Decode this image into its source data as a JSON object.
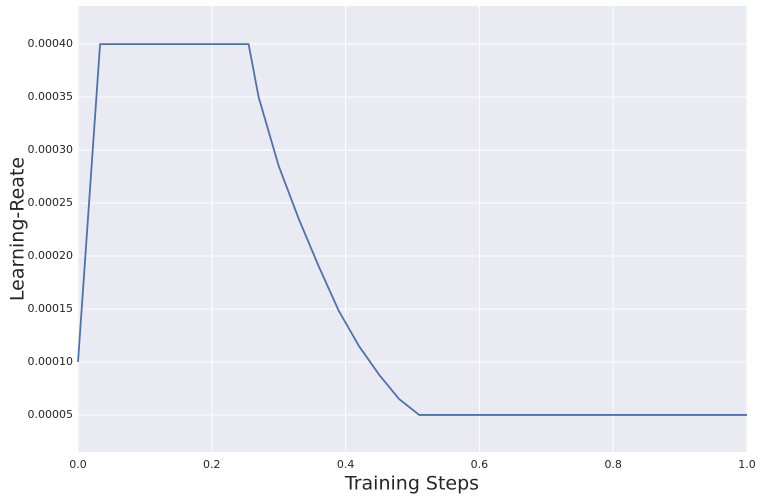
{
  "chart_data": {
    "type": "line",
    "xlabel": "Training Steps",
    "ylabel": "Learning-Reate",
    "x": [
      0,
      0.033,
      0.255,
      0.27,
      0.3,
      0.33,
      0.36,
      0.39,
      0.42,
      0.45,
      0.48,
      0.51,
      1.0
    ],
    "series": [
      {
        "name": "learning rate",
        "color": "#4c72b0",
        "values": [
          0.0001,
          0.0004,
          0.0004,
          0.00035,
          0.000285,
          0.000235,
          0.00019,
          0.000148,
          0.000115,
          8.8e-05,
          6.5e-05,
          5e-05,
          5e-05
        ]
      }
    ],
    "xlim": [
      0,
      1.0
    ],
    "xticks": [
      {
        "value": 0,
        "label": "0.0"
      },
      0.2,
      0.4,
      0.6,
      0.8,
      {
        "value": 1.0,
        "label": "1.0"
      }
    ],
    "ylim": [
      1.5e-05,
      0.000436
    ],
    "yticks": [
      {
        "value": 5e-05,
        "label": "0.00005"
      },
      {
        "value": 0.0001,
        "label": "0.00010"
      },
      {
        "value": 0.00015,
        "label": "0.00015"
      },
      {
        "value": 0.0002,
        "label": "0.00020"
      },
      {
        "value": 0.00025,
        "label": "0.00025"
      },
      {
        "value": 0.0003,
        "label": "0.00030"
      },
      {
        "value": 0.00035,
        "label": "0.00035"
      },
      {
        "value": 0.0004,
        "label": "0.00040"
      }
    ],
    "grid": true,
    "background": "#eaeaf2"
  }
}
